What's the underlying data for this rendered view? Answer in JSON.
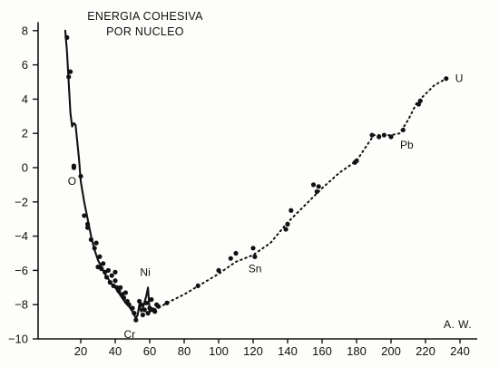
{
  "chart_data": {
    "type": "scatter",
    "title_lines": [
      "ENERGIA COHESIVA",
      "POR NUCLEO"
    ],
    "xlabel": "A. W.",
    "ylabel": "",
    "xlim": [
      0,
      250
    ],
    "ylim": [
      -10,
      8.5
    ],
    "x_ticks": [
      20,
      40,
      60,
      80,
      100,
      120,
      140,
      160,
      180,
      200,
      220,
      240
    ],
    "y_ticks": [
      8,
      6,
      4,
      2,
      0,
      -2,
      -4,
      -6,
      -8,
      -10
    ],
    "x_tick_labels": [
      "20",
      "40",
      "60",
      "80",
      "100",
      "120",
      "140",
      "160",
      "180",
      "200",
      "220",
      "240"
    ],
    "y_tick_labels": [
      "8",
      "6",
      "4",
      "2",
      "0",
      "−2",
      "−4",
      "−6",
      "−8",
      "−10"
    ],
    "grid": false,
    "series": [
      {
        "style": "solid",
        "x": [
          11,
          12,
          13,
          14,
          15,
          16,
          17,
          18,
          19,
          20,
          22,
          24,
          26,
          28,
          30,
          32,
          34,
          36,
          38,
          40,
          42,
          44,
          46,
          48,
          50,
          52,
          53,
          54,
          55,
          56,
          58,
          59,
          60
        ],
        "y": [
          8.0,
          6.8,
          5.0,
          3.2,
          2.4,
          2.6,
          2.5,
          1.5,
          0.5,
          -0.8,
          -2.0,
          -3.0,
          -4.0,
          -4.8,
          -5.4,
          -5.8,
          -6.2,
          -6.5,
          -6.8,
          -7.0,
          -7.3,
          -7.6,
          -7.9,
          -8.1,
          -8.4,
          -8.8,
          -8.6,
          -8.0,
          -8.4,
          -8.2,
          -7.5,
          -7.0,
          -8.4
        ]
      },
      {
        "style": "dotted",
        "x": [
          60,
          65,
          70,
          80,
          90,
          100,
          110,
          115,
          120,
          130,
          140,
          150,
          160,
          170,
          180,
          190,
          195,
          200,
          205,
          210,
          215,
          220,
          225,
          232
        ],
        "y": [
          -8.4,
          -8.2,
          -7.9,
          -7.4,
          -6.8,
          -6.2,
          -5.5,
          -5.3,
          -5.1,
          -4.4,
          -3.2,
          -2.2,
          -1.2,
          -0.3,
          0.4,
          1.9,
          1.9,
          1.9,
          2.0,
          2.8,
          3.8,
          4.3,
          4.8,
          5.2
        ]
      },
      {
        "style": "points",
        "x": [
          12,
          13,
          14,
          16,
          16,
          20,
          22,
          24,
          24,
          26,
          28,
          29,
          30,
          31,
          32,
          33,
          34,
          35,
          36,
          37,
          38,
          39,
          40,
          40,
          41,
          42,
          43,
          44,
          45,
          46,
          47,
          48,
          50,
          51,
          52,
          54,
          55,
          56,
          57,
          58,
          59,
          60,
          61,
          62,
          63,
          64,
          65,
          70,
          88,
          100,
          107,
          110,
          120,
          121,
          139,
          140,
          142,
          155,
          157,
          158,
          179,
          180,
          189,
          193,
          196,
          200,
          207,
          216,
          217,
          232
        ],
        "y": [
          7.6,
          5.3,
          5.6,
          0.0,
          0.1,
          -0.5,
          -2.8,
          -3.3,
          -3.5,
          -4.2,
          -4.7,
          -4.4,
          -5.8,
          -5.2,
          -5.9,
          -5.6,
          -6.1,
          -6.4,
          -6.0,
          -6.7,
          -6.3,
          -6.9,
          -6.1,
          -6.6,
          -7.0,
          -7.2,
          -7.0,
          -7.4,
          -7.6,
          -7.3,
          -7.8,
          -8.0,
          -8.2,
          -8.5,
          -8.9,
          -7.8,
          -8.0,
          -8.6,
          -8.3,
          -7.9,
          -8.5,
          -8.2,
          -7.7,
          -8.3,
          -8.4,
          -8.0,
          -8.1,
          -7.9,
          -6.9,
          -6.0,
          -5.3,
          -5.0,
          -4.7,
          -5.2,
          -3.6,
          -3.3,
          -2.5,
          -1.0,
          -1.4,
          -1.1,
          0.3,
          0.4,
          1.9,
          1.8,
          1.9,
          1.8,
          2.2,
          3.7,
          3.9,
          5.2
        ]
      }
    ],
    "annotations": [
      {
        "text": "O",
        "x": 16,
        "y": 0.0
      },
      {
        "text": "Ni",
        "x": 59,
        "y": -7.0
      },
      {
        "text": "Cr",
        "x": 52,
        "y": -8.9
      },
      {
        "text": "Sn",
        "x": 119,
        "y": -5.1
      },
      {
        "text": "Pb",
        "x": 207,
        "y": 2.0
      },
      {
        "text": "U",
        "x": 232,
        "y": 5.2
      }
    ]
  }
}
